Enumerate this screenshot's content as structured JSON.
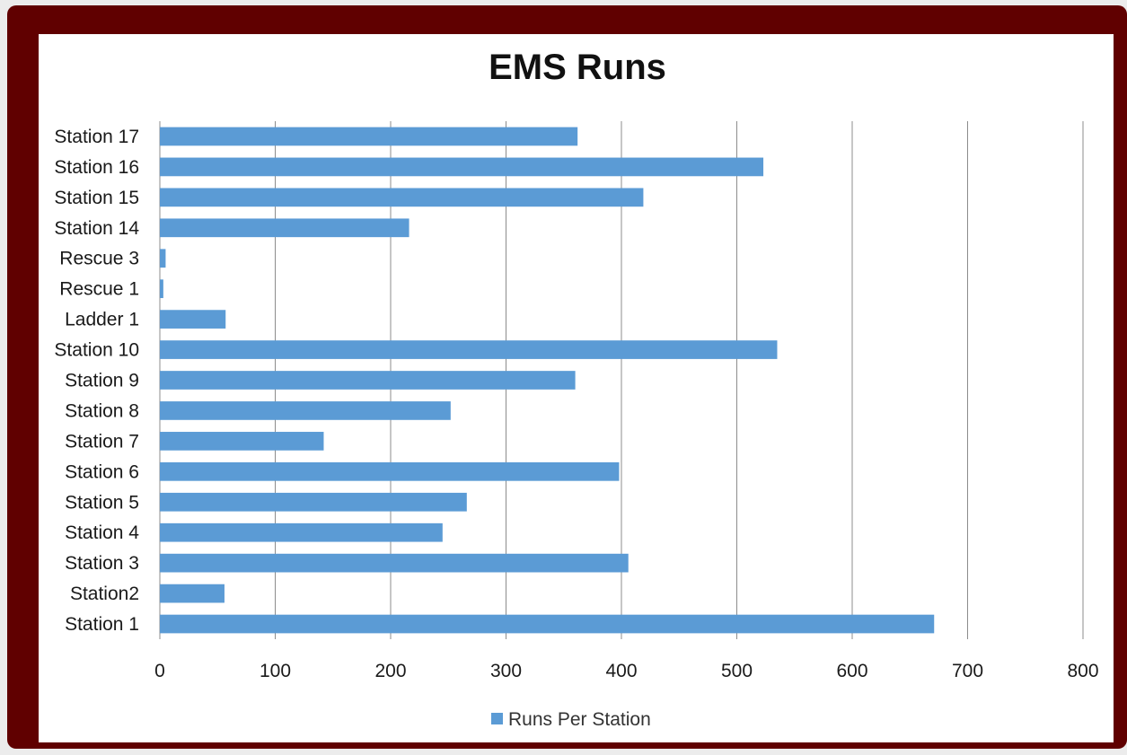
{
  "colors": {
    "frame": "#600000",
    "panel": "#ffffff",
    "bar": "#5b9bd5",
    "gridline": "#8c8c8c"
  },
  "chart_data": {
    "type": "bar",
    "orientation": "horizontal",
    "title": "EMS Runs",
    "xlabel": "",
    "ylabel": "",
    "xlim": [
      0,
      800
    ],
    "xticks": [
      "0",
      "100",
      "200",
      "300",
      "400",
      "500",
      "600",
      "700",
      "800"
    ],
    "grid": true,
    "legend_position": "bottom",
    "categories": [
      "Station 17",
      "Station 16",
      "Station 15",
      "Station 14",
      "Rescue 3",
      "Rescue 1",
      "Ladder 1",
      "Station 10",
      "Station 9",
      "Station 8",
      "Station 7",
      "Station 6",
      "Station 5",
      "Station 4",
      "Station 3",
      "Station2",
      "Station 1"
    ],
    "series": [
      {
        "name": "Runs Per Station",
        "values": [
          362,
          523,
          419,
          216,
          5,
          3,
          57,
          535,
          360,
          252,
          142,
          398,
          266,
          245,
          406,
          56,
          671
        ]
      }
    ]
  }
}
